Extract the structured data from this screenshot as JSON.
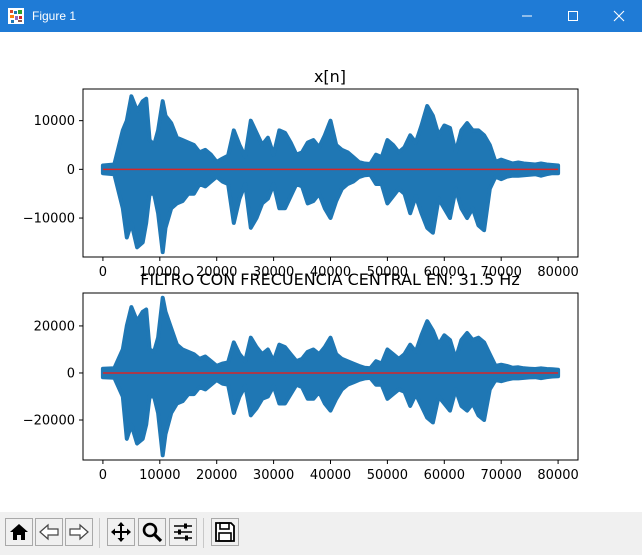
{
  "window": {
    "title": "Figure 1",
    "icon": "matplotlib-icon",
    "controls": [
      "minimize-icon",
      "maximize-icon",
      "close-icon"
    ]
  },
  "toolbar": {
    "buttons": [
      {
        "name": "home-button",
        "icon": "home-icon"
      },
      {
        "name": "back-button",
        "icon": "back-arrow-icon"
      },
      {
        "name": "forward-button",
        "icon": "forward-arrow-icon"
      },
      {
        "name": "pan-button",
        "icon": "move-icon"
      },
      {
        "name": "zoom-button",
        "icon": "magnifier-icon"
      },
      {
        "name": "subplots-button",
        "icon": "sliders-icon"
      },
      {
        "name": "save-button",
        "icon": "floppy-disk-icon"
      }
    ]
  },
  "colors": {
    "signal": "#1f77b4",
    "baseline": "#d62728",
    "titlebar": "#1f7bd6"
  },
  "chart_data": [
    {
      "type": "scatter",
      "style": "stem",
      "title": "x[n]",
      "xlim": [
        -3500,
        83500
      ],
      "ylim": [
        -18000,
        16500
      ],
      "xticks": [
        0,
        10000,
        20000,
        30000,
        40000,
        50000,
        60000,
        70000,
        80000
      ],
      "xtick_labels": [
        "0",
        "10000",
        "20000",
        "30000",
        "40000",
        "50000",
        "60000",
        "70000",
        "80000"
      ],
      "yticks": [
        -10000,
        0,
        10000
      ],
      "ytick_labels": [
        "−10000",
        "0",
        "10000"
      ],
      "envelope": {
        "x": [
          0,
          2000,
          3500,
          4200,
          5000,
          6000,
          7000,
          7600,
          8200,
          9000,
          9700,
          10500,
          11000,
          12000,
          13000,
          14000,
          15000,
          16000,
          17000,
          18000,
          19000,
          20000,
          21000,
          22000,
          23000,
          24000,
          25000,
          26000,
          27000,
          28000,
          29000,
          30000,
          31000,
          32000,
          33000,
          34000,
          35000,
          36000,
          37000,
          38000,
          39000,
          40000,
          41000,
          42000,
          43000,
          44000,
          45000,
          46000,
          47000,
          48000,
          49000,
          50000,
          51000,
          52000,
          53000,
          54000,
          55000,
          56000,
          57000,
          58000,
          59000,
          60000,
          61000,
          62000,
          63000,
          64000,
          65000,
          66000,
          67000,
          68000,
          69000,
          70000,
          71000,
          72000,
          73000,
          74000,
          75000,
          76000,
          77000,
          78000,
          79000,
          80000
        ],
        "upper": [
          800,
          1000,
          8000,
          10000,
          15000,
          12000,
          14000,
          14500,
          6000,
          5000,
          8000,
          14000,
          11000,
          9500,
          6500,
          6000,
          5500,
          5000,
          3500,
          4000,
          3000,
          1500,
          2200,
          2800,
          8000,
          5000,
          2600,
          10000,
          7500,
          5000,
          6500,
          3000,
          8000,
          7500,
          5500,
          3000,
          3500,
          5500,
          6000,
          4500,
          7000,
          10000,
          5000,
          4000,
          3500,
          2500,
          1500,
          1200,
          1100,
          3000,
          2500,
          6000,
          5000,
          3500,
          4500,
          7000,
          5500,
          9000,
          13000,
          11000,
          7000,
          9000,
          8500,
          3500,
          8000,
          9500,
          8000,
          8000,
          7000,
          5000,
          1500,
          2000,
          1600,
          1200,
          1400,
          1200,
          1100,
          1000,
          1200,
          1000,
          900,
          800
        ],
        "lower": [
          -800,
          -1000,
          -8000,
          -14000,
          -11000,
          -16000,
          -15000,
          -11000,
          -5000,
          -5000,
          -9000,
          -17000,
          -12000,
          -8000,
          -7000,
          -6500,
          -5000,
          -5000,
          -3000,
          -3500,
          -2500,
          -1500,
          -2500,
          -3000,
          -11000,
          -6000,
          -3000,
          -12000,
          -10000,
          -7000,
          -6000,
          -3000,
          -8000,
          -8000,
          -5500,
          -3000,
          -3500,
          -7000,
          -6500,
          -5000,
          -8000,
          -10000,
          -6500,
          -4000,
          -3000,
          -2500,
          -1600,
          -1200,
          -1100,
          -3000,
          -3000,
          -7000,
          -5500,
          -4000,
          -5000,
          -9000,
          -5500,
          -9000,
          -12000,
          -13000,
          -6000,
          -8000,
          -10000,
          -4000,
          -8000,
          -10000,
          -8000,
          -11500,
          -12500,
          -4000,
          -1500,
          -2000,
          -1500,
          -1300,
          -1300,
          -1200,
          -1100,
          -1000,
          -1300,
          -1000,
          -800,
          -800
        ]
      }
    },
    {
      "type": "scatter",
      "style": "stem",
      "title": "FILTRO CON FRECUENCIA CENTRAL EN:   31.5 Hz",
      "xlim": [
        -3500,
        83500
      ],
      "ylim": [
        -37000,
        34000
      ],
      "xticks": [
        0,
        10000,
        20000,
        30000,
        40000,
        50000,
        60000,
        70000,
        80000
      ],
      "xtick_labels": [
        "0",
        "10000",
        "20000",
        "30000",
        "40000",
        "50000",
        "60000",
        "70000",
        "80000"
      ],
      "yticks": [
        -20000,
        0,
        20000
      ],
      "ytick_labels": [
        "−20000",
        "0",
        "20000"
      ],
      "envelope": {
        "x": [
          0,
          2000,
          3500,
          4200,
          5000,
          6000,
          7000,
          7600,
          8200,
          9000,
          9700,
          10500,
          11000,
          12000,
          13000,
          14000,
          15000,
          16000,
          17000,
          18000,
          19000,
          20000,
          21000,
          22000,
          23000,
          24000,
          25000,
          26000,
          27000,
          28000,
          29000,
          30000,
          31000,
          32000,
          33000,
          34000,
          35000,
          36000,
          37000,
          38000,
          39000,
          40000,
          41000,
          42000,
          43000,
          44000,
          45000,
          46000,
          47000,
          48000,
          49000,
          50000,
          51000,
          52000,
          53000,
          54000,
          55000,
          56000,
          57000,
          58000,
          59000,
          60000,
          61000,
          62000,
          63000,
          64000,
          65000,
          66000,
          67000,
          68000,
          69000,
          70000,
          71000,
          72000,
          73000,
          74000,
          75000,
          76000,
          77000,
          78000,
          79000,
          80000
        ],
        "upper": [
          1800,
          2000,
          10000,
          20000,
          28000,
          22000,
          26000,
          27000,
          10000,
          9000,
          15000,
          32000,
          26000,
          19000,
          12000,
          10000,
          9000,
          8000,
          6000,
          7000,
          5000,
          3000,
          4000,
          4500,
          13000,
          8000,
          5000,
          15000,
          11000,
          8000,
          10000,
          5000,
          12000,
          11000,
          8000,
          5000,
          6000,
          9000,
          10000,
          8000,
          11000,
          15000,
          8000,
          6000,
          5000,
          4000,
          3000,
          2200,
          2000,
          5000,
          4000,
          10000,
          8000,
          6000,
          8000,
          12000,
          9000,
          16000,
          22000,
          18000,
          12000,
          16000,
          14000,
          6000,
          14000,
          17000,
          14000,
          15000,
          13000,
          8000,
          3000,
          3500,
          3000,
          2200,
          2400,
          2000,
          1800,
          1700,
          2000,
          1700,
          1600,
          1400
        ],
        "lower": [
          -1800,
          -2000,
          -10000,
          -28000,
          -22000,
          -30000,
          -28000,
          -22000,
          -10000,
          -10000,
          -17000,
          -35000,
          -26000,
          -17000,
          -13000,
          -12000,
          -9000,
          -9000,
          -6000,
          -7000,
          -5000,
          -3000,
          -4500,
          -5000,
          -17000,
          -10000,
          -5500,
          -18000,
          -15000,
          -11000,
          -10000,
          -5500,
          -13000,
          -13000,
          -9000,
          -5000,
          -6000,
          -11000,
          -11000,
          -8000,
          -13000,
          -16000,
          -11000,
          -7000,
          -5000,
          -4000,
          -3000,
          -2300,
          -2100,
          -5000,
          -5000,
          -11000,
          -9000,
          -7000,
          -8000,
          -14000,
          -9000,
          -14000,
          -19000,
          -21000,
          -10000,
          -13000,
          -16000,
          -7000,
          -14000,
          -16000,
          -13000,
          -18000,
          -20000,
          -7000,
          -3000,
          -3500,
          -2800,
          -2300,
          -2300,
          -2100,
          -1900,
          -1800,
          -2200,
          -1800,
          -1500,
          -1400
        ]
      }
    }
  ]
}
